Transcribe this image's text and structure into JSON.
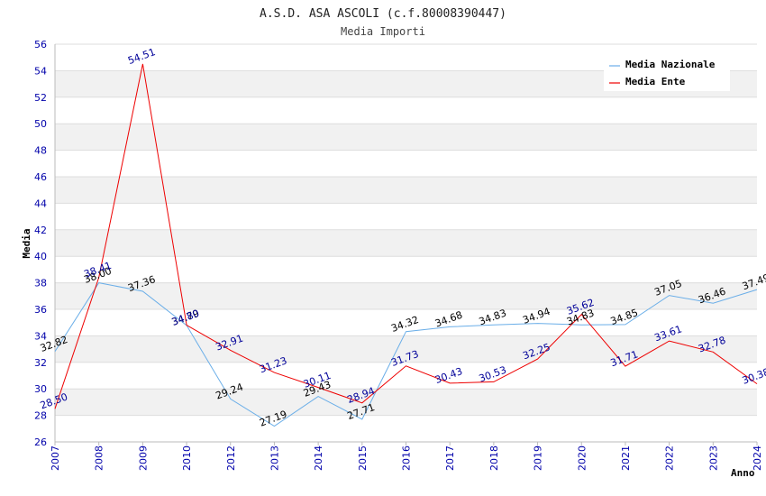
{
  "chart_data": {
    "type": "line",
    "title": "A.S.D. ASA ASCOLI (c.f.80008390447)",
    "subtitle": "Media Importi",
    "ylabel": "Media",
    "xlabel": "Anno",
    "ylim": [
      26,
      56
    ],
    "yticks": [
      "26",
      "28",
      "30",
      "32",
      "34",
      "36",
      "38",
      "40",
      "42",
      "44",
      "46",
      "48",
      "50",
      "52",
      "54",
      "56"
    ],
    "categories": [
      "2007",
      "2008",
      "2009",
      "2010",
      "2012",
      "2013",
      "2014",
      "2015",
      "2016",
      "2017",
      "2018",
      "2019",
      "2020",
      "2021",
      "2022",
      "2023",
      "2024"
    ],
    "series": [
      {
        "name": "Media Nazionale",
        "color": "#6aaee8",
        "label_color": "#000000",
        "values": [
          32.82,
          38.0,
          37.36,
          34.79,
          29.24,
          27.19,
          29.43,
          27.71,
          34.32,
          34.68,
          34.83,
          34.94,
          34.83,
          34.85,
          37.05,
          36.46,
          37.49
        ],
        "labels": [
          "32.82",
          "38.00",
          "37.36",
          "34.79",
          "29.24",
          "27.19",
          "29.43",
          "27.71",
          "34.32",
          "34.68",
          "34.83",
          "34.94",
          "34.83",
          "34.85",
          "37.05",
          "36.46",
          "37.49"
        ]
      },
      {
        "name": "Media Ente",
        "color": "#ee0000",
        "label_color": "#000099",
        "values": [
          28.5,
          38.41,
          54.51,
          34.8,
          32.91,
          31.23,
          30.11,
          28.94,
          31.73,
          30.43,
          30.53,
          32.25,
          35.62,
          31.71,
          33.61,
          32.78,
          30.38
        ],
        "labels": [
          "28.50",
          "38.41",
          "54.51",
          "34.80",
          "32.91",
          "31.23",
          "30.11",
          "28.94",
          "31.73",
          "30.43",
          "30.53",
          "32.25",
          "35.62",
          "31.71",
          "33.61",
          "32.78",
          "30.38"
        ]
      }
    ],
    "legend_position": "top-right",
    "grid": true
  }
}
